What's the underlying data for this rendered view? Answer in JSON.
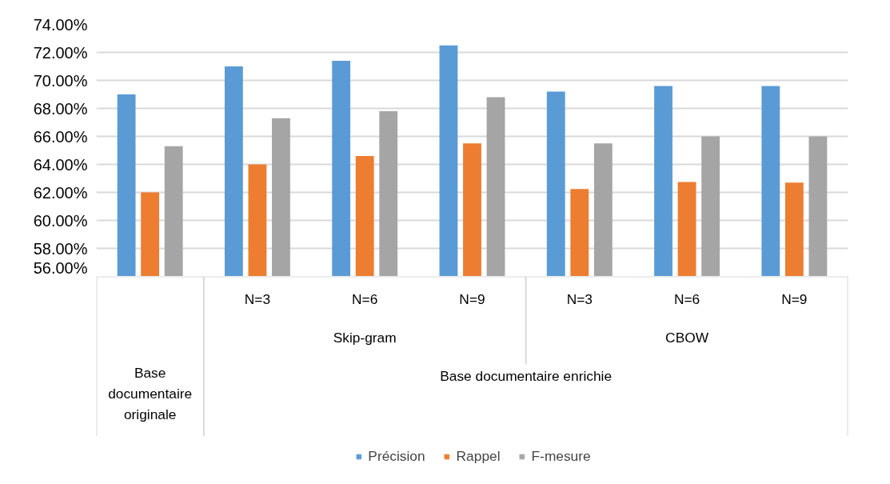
{
  "chart_data": {
    "type": "bar",
    "categories": [
      null,
      "N=3",
      "N=6",
      "N=9",
      "N=3",
      "N=6",
      "N=9"
    ],
    "series": [
      {
        "name": "Précision",
        "color": "#5b9bd5",
        "values": [
          69.0,
          71.0,
          71.4,
          72.5,
          69.2,
          69.6,
          69.6
        ]
      },
      {
        "name": "Rappel",
        "color": "#ed7d31",
        "values": [
          62.0,
          64.0,
          64.6,
          65.5,
          62.25,
          62.75,
          62.7
        ]
      },
      {
        "name": "F-mesure",
        "color": "#a5a5a5",
        "values": [
          65.3,
          67.3,
          67.8,
          68.8,
          65.5,
          66.0,
          66.0
        ]
      }
    ],
    "annotations": [
      "Skip-gram",
      "CBOW",
      "Base documentaire originale",
      "Base documentaire enrichie"
    ],
    "ylim": [
      56,
      74
    ],
    "yticks": [
      {
        "value": 56,
        "label": "56.00%"
      },
      {
        "value": 58,
        "label": "58.00%"
      },
      {
        "value": 60,
        "label": "60.00%"
      },
      {
        "value": 62,
        "label": "62.00%"
      },
      {
        "value": 64,
        "label": "64.00%"
      },
      {
        "value": 66,
        "label": "66.00%"
      },
      {
        "value": 68,
        "label": "68.00%"
      },
      {
        "value": 70,
        "label": "70.00%"
      },
      {
        "value": 72,
        "label": "72.00%"
      },
      {
        "value": 74,
        "label": "74.00%"
      }
    ],
    "grid": "y",
    "legend": "bottom"
  }
}
